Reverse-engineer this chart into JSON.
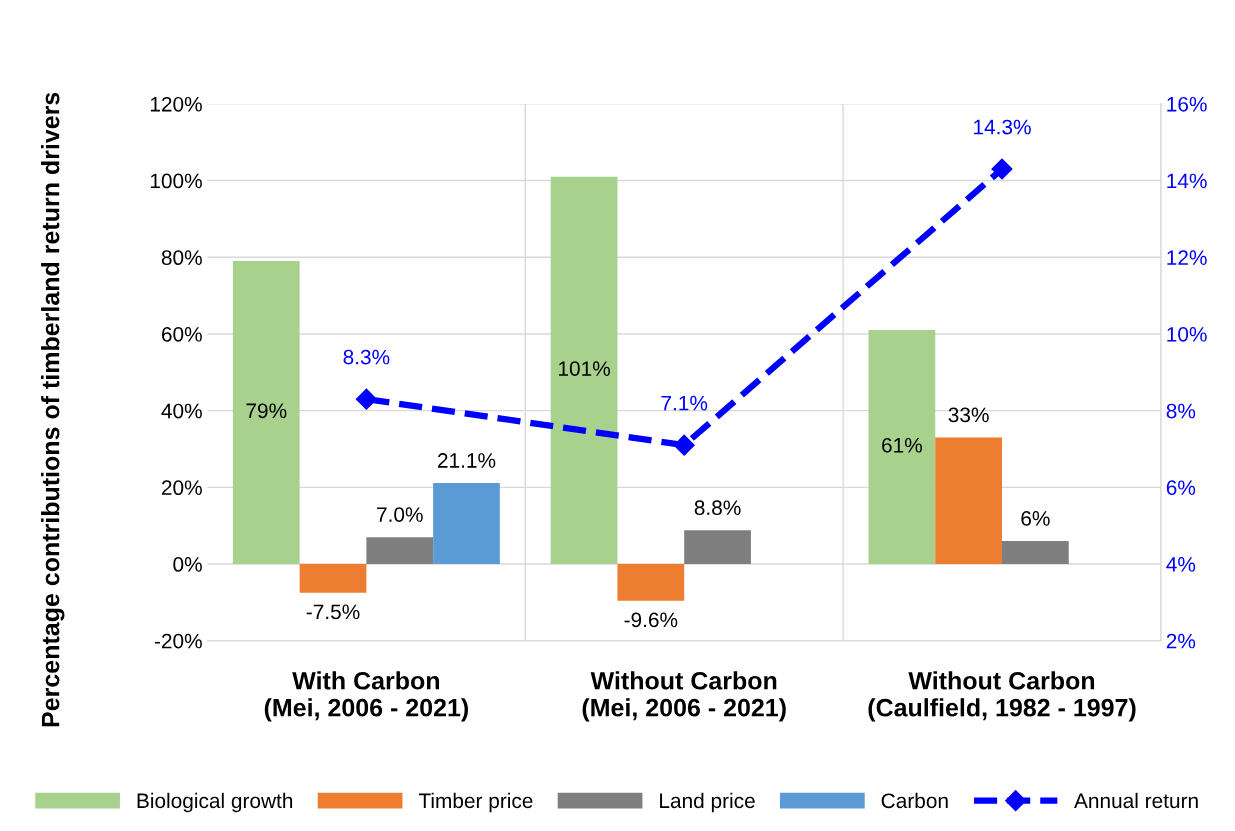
{
  "chart_data": {
    "type": "bar",
    "ylabel": "Percentage contributions of timberland return drivers",
    "categories": [
      "With Carbon\n(Mei, 2006 - 2021)",
      "Without Carbon\n(Mei, 2006 - 2021)",
      "Without Carbon\n(Caulfield, 1982 - 1997)"
    ],
    "series": [
      {
        "name": "Biological growth",
        "color": "#a9d18e",
        "values": [
          79,
          101,
          61
        ],
        "value_labels": [
          "79%",
          "101%",
          "61%"
        ]
      },
      {
        "name": "Timber price",
        "color": "#ed7d31",
        "values": [
          -7.5,
          -9.6,
          33
        ],
        "value_labels": [
          "-7.5%",
          "-9.6%",
          "33%"
        ]
      },
      {
        "name": "Land price",
        "color": "#7f7f7f",
        "values": [
          7.0,
          8.8,
          6
        ],
        "value_labels": [
          "7.0%",
          "8.8%",
          "6%"
        ]
      },
      {
        "name": "Carbon",
        "color": "#5b9bd5",
        "values": [
          21.1,
          null,
          null
        ],
        "value_labels": [
          "21.1%",
          null,
          null
        ]
      },
      {
        "name": "Annual return",
        "type": "line",
        "axis": "y2",
        "color": "#0000ff",
        "marker": "diamond",
        "line_style": "dashed",
        "values": [
          8.3,
          7.1,
          14.3
        ],
        "value_labels": [
          "8.3%",
          "7.1%",
          "14.3%"
        ]
      }
    ],
    "ylim": [
      -20,
      120
    ],
    "yticks": [
      {
        "value": -20,
        "label": "-20%"
      },
      {
        "value": 0,
        "label": "0%"
      },
      {
        "value": 20,
        "label": "20%"
      },
      {
        "value": 40,
        "label": "40%"
      },
      {
        "value": 60,
        "label": "60%"
      },
      {
        "value": 80,
        "label": "80%"
      },
      {
        "value": 100,
        "label": "100%"
      },
      {
        "value": 120,
        "label": "120%"
      }
    ],
    "y2lim": [
      2,
      16
    ],
    "y2ticks": [
      {
        "value": 2,
        "label": "2%"
      },
      {
        "value": 4,
        "label": "4%"
      },
      {
        "value": 6,
        "label": "6%"
      },
      {
        "value": 8,
        "label": "8%"
      },
      {
        "value": 10,
        "label": "10%"
      },
      {
        "value": 12,
        "label": "12%"
      },
      {
        "value": 14,
        "label": "14%"
      },
      {
        "value": 16,
        "label": "16%"
      }
    ],
    "grid": true,
    "legend": "bottom"
  }
}
